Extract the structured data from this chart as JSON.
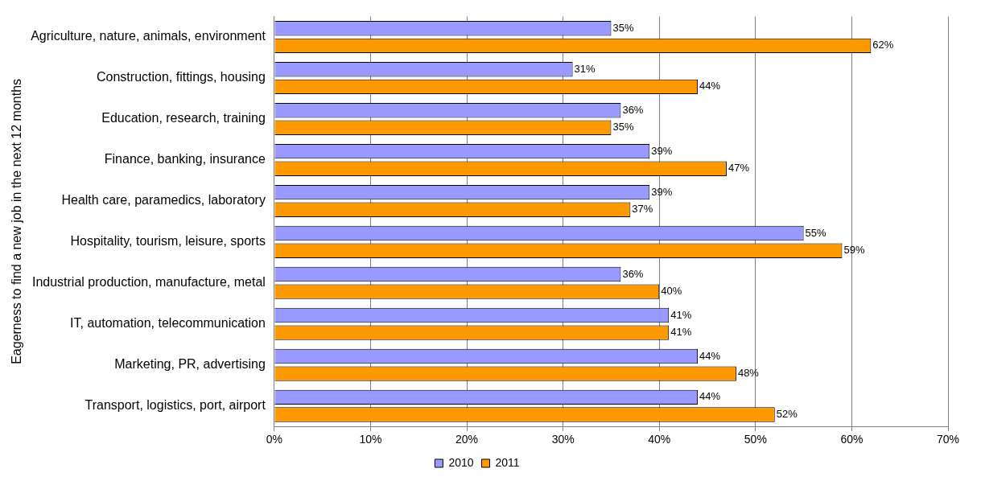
{
  "chart_data": {
    "type": "bar",
    "orientation": "horizontal",
    "ylabel": "Eagerness to find a new job in the next 12 months",
    "categories": [
      "Agriculture, nature, animals, environment",
      "Construction, fittings, housing",
      "Education, research, training",
      "Finance, banking, insurance",
      "Health care, paramedics, laboratory",
      "Hospitality, tourism, leisure, sports",
      "Industrial production, manufacture, metal",
      "IT, automation, telecommunication",
      "Marketing, PR, advertising",
      "Transport, logistics, port, airport"
    ],
    "series": [
      {
        "name": "2010",
        "color": "#9999ff",
        "values": [
          35,
          31,
          36,
          39,
          39,
          55,
          36,
          41,
          44,
          44
        ],
        "value_labels": [
          "35%",
          "31%",
          "36%",
          "39%",
          "39%",
          "55%",
          "36%",
          "41%",
          "44%",
          "44%"
        ]
      },
      {
        "name": "2011",
        "color": "#ff9900",
        "values": [
          62,
          44,
          35,
          47,
          37,
          59,
          40,
          41,
          48,
          52
        ],
        "value_labels": [
          "62%",
          "44%",
          "35%",
          "47%",
          "37%",
          "59%",
          "40%",
          "41%",
          "48%",
          "52%"
        ]
      }
    ],
    "xlim": [
      0,
      70
    ],
    "xticks": [
      {
        "value": 0,
        "label": "0%"
      },
      {
        "value": 10,
        "label": "10%"
      },
      {
        "value": 20,
        "label": "20%"
      },
      {
        "value": 30,
        "label": "30%"
      },
      {
        "value": 40,
        "label": "40%"
      },
      {
        "value": 50,
        "label": "50%"
      },
      {
        "value": 60,
        "label": "60%"
      },
      {
        "value": 70,
        "label": "70%"
      }
    ],
    "grid": "x",
    "legend": "bottom"
  }
}
